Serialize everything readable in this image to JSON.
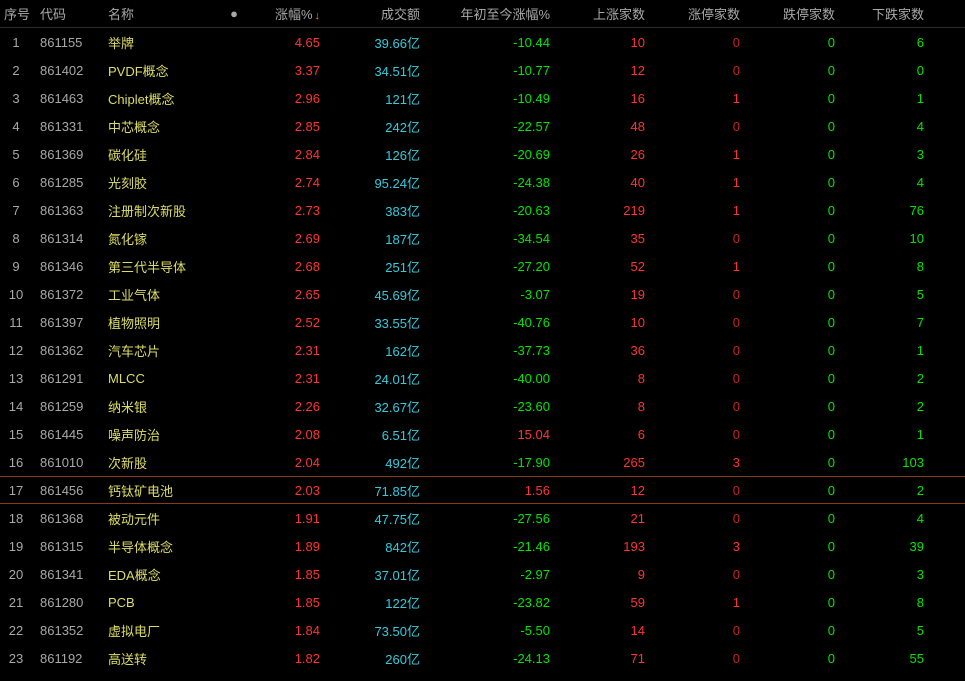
{
  "headers": {
    "seq": "序号",
    "code": "代码",
    "name": "名称",
    "dot": "●",
    "change": "涨幅%",
    "sort_indicator": "↓",
    "volume": "成交额",
    "ytd": "年初至今涨幅%",
    "up_count": "上涨家数",
    "limit_up": "涨停家数",
    "limit_down": "跌停家数",
    "down_count": "下跌家数"
  },
  "colors": {
    "background": "#000000",
    "header_text": "#a8a8a8",
    "seq_text": "#a8a8a8",
    "code_text": "#a8a8a8",
    "name_text": "#dddd66",
    "red": "#ff3333",
    "green": "#00e600",
    "cyan": "#33ccdd",
    "highlight_border": "#8a3a1a"
  },
  "highlight_row_index": 16,
  "rows": [
    {
      "seq": "1",
      "code": "861155",
      "name": "举牌",
      "change": "4.65",
      "volume": "39.66亿",
      "ytd": "-10.44",
      "up": "10",
      "limit_up": "0",
      "limit_down": "0",
      "down": "6",
      "ytd_neg": true
    },
    {
      "seq": "2",
      "code": "861402",
      "name": "PVDF概念",
      "change": "3.37",
      "volume": "34.51亿",
      "ytd": "-10.77",
      "up": "12",
      "limit_up": "0",
      "limit_down": "0",
      "down": "0",
      "ytd_neg": true
    },
    {
      "seq": "3",
      "code": "861463",
      "name": "Chiplet概念",
      "change": "2.96",
      "volume": "121亿",
      "ytd": "-10.49",
      "up": "16",
      "limit_up": "1",
      "limit_down": "0",
      "down": "1",
      "ytd_neg": true
    },
    {
      "seq": "4",
      "code": "861331",
      "name": "中芯概念",
      "change": "2.85",
      "volume": "242亿",
      "ytd": "-22.57",
      "up": "48",
      "limit_up": "0",
      "limit_down": "0",
      "down": "4",
      "ytd_neg": true
    },
    {
      "seq": "5",
      "code": "861369",
      "name": "碳化硅",
      "change": "2.84",
      "volume": "126亿",
      "ytd": "-20.69",
      "up": "26",
      "limit_up": "1",
      "limit_down": "0",
      "down": "3",
      "ytd_neg": true
    },
    {
      "seq": "6",
      "code": "861285",
      "name": "光刻胶",
      "change": "2.74",
      "volume": "95.24亿",
      "ytd": "-24.38",
      "up": "40",
      "limit_up": "1",
      "limit_down": "0",
      "down": "4",
      "ytd_neg": true
    },
    {
      "seq": "7",
      "code": "861363",
      "name": "注册制次新股",
      "change": "2.73",
      "volume": "383亿",
      "ytd": "-20.63",
      "up": "219",
      "limit_up": "1",
      "limit_down": "0",
      "down": "76",
      "ytd_neg": true
    },
    {
      "seq": "8",
      "code": "861314",
      "name": "氮化镓",
      "change": "2.69",
      "volume": "187亿",
      "ytd": "-34.54",
      "up": "35",
      "limit_up": "0",
      "limit_down": "0",
      "down": "10",
      "ytd_neg": true
    },
    {
      "seq": "9",
      "code": "861346",
      "name": "第三代半导体",
      "change": "2.68",
      "volume": "251亿",
      "ytd": "-27.20",
      "up": "52",
      "limit_up": "1",
      "limit_down": "0",
      "down": "8",
      "ytd_neg": true
    },
    {
      "seq": "10",
      "code": "861372",
      "name": "工业气体",
      "change": "2.65",
      "volume": "45.69亿",
      "ytd": "-3.07",
      "up": "19",
      "limit_up": "0",
      "limit_down": "0",
      "down": "5",
      "ytd_neg": true
    },
    {
      "seq": "11",
      "code": "861397",
      "name": "植物照明",
      "change": "2.52",
      "volume": "33.55亿",
      "ytd": "-40.76",
      "up": "10",
      "limit_up": "0",
      "limit_down": "0",
      "down": "7",
      "ytd_neg": true
    },
    {
      "seq": "12",
      "code": "861362",
      "name": "汽车芯片",
      "change": "2.31",
      "volume": "162亿",
      "ytd": "-37.73",
      "up": "36",
      "limit_up": "0",
      "limit_down": "0",
      "down": "1",
      "ytd_neg": true
    },
    {
      "seq": "13",
      "code": "861291",
      "name": "MLCC",
      "change": "2.31",
      "volume": "24.01亿",
      "ytd": "-40.00",
      "up": "8",
      "limit_up": "0",
      "limit_down": "0",
      "down": "2",
      "ytd_neg": true
    },
    {
      "seq": "14",
      "code": "861259",
      "name": "纳米银",
      "change": "2.26",
      "volume": "32.67亿",
      "ytd": "-23.60",
      "up": "8",
      "limit_up": "0",
      "limit_down": "0",
      "down": "2",
      "ytd_neg": true
    },
    {
      "seq": "15",
      "code": "861445",
      "name": "噪声防治",
      "change": "2.08",
      "volume": "6.51亿",
      "ytd": "15.04",
      "up": "6",
      "limit_up": "0",
      "limit_down": "0",
      "down": "1",
      "ytd_neg": false
    },
    {
      "seq": "16",
      "code": "861010",
      "name": "次新股",
      "change": "2.04",
      "volume": "492亿",
      "ytd": "-17.90",
      "up": "265",
      "limit_up": "3",
      "limit_down": "0",
      "down": "103",
      "ytd_neg": true
    },
    {
      "seq": "17",
      "code": "861456",
      "name": "钙钛矿电池",
      "change": "2.03",
      "volume": "71.85亿",
      "ytd": "1.56",
      "up": "12",
      "limit_up": "0",
      "limit_down": "0",
      "down": "2",
      "ytd_neg": false
    },
    {
      "seq": "18",
      "code": "861368",
      "name": "被动元件",
      "change": "1.91",
      "volume": "47.75亿",
      "ytd": "-27.56",
      "up": "21",
      "limit_up": "0",
      "limit_down": "0",
      "down": "4",
      "ytd_neg": true
    },
    {
      "seq": "19",
      "code": "861315",
      "name": "半导体概念",
      "change": "1.89",
      "volume": "842亿",
      "ytd": "-21.46",
      "up": "193",
      "limit_up": "3",
      "limit_down": "0",
      "down": "39",
      "ytd_neg": true
    },
    {
      "seq": "20",
      "code": "861341",
      "name": "EDA概念",
      "change": "1.85",
      "volume": "37.01亿",
      "ytd": "-2.97",
      "up": "9",
      "limit_up": "0",
      "limit_down": "0",
      "down": "3",
      "ytd_neg": true
    },
    {
      "seq": "21",
      "code": "861280",
      "name": "PCB",
      "change": "1.85",
      "volume": "122亿",
      "ytd": "-23.82",
      "up": "59",
      "limit_up": "1",
      "limit_down": "0",
      "down": "8",
      "ytd_neg": true
    },
    {
      "seq": "22",
      "code": "861352",
      "name": "虚拟电厂",
      "change": "1.84",
      "volume": "73.50亿",
      "ytd": "-5.50",
      "up": "14",
      "limit_up": "0",
      "limit_down": "0",
      "down": "5",
      "ytd_neg": true
    },
    {
      "seq": "23",
      "code": "861192",
      "name": "高送转",
      "change": "1.82",
      "volume": "260亿",
      "ytd": "-24.13",
      "up": "71",
      "limit_up": "0",
      "limit_down": "0",
      "down": "55",
      "ytd_neg": true
    }
  ]
}
